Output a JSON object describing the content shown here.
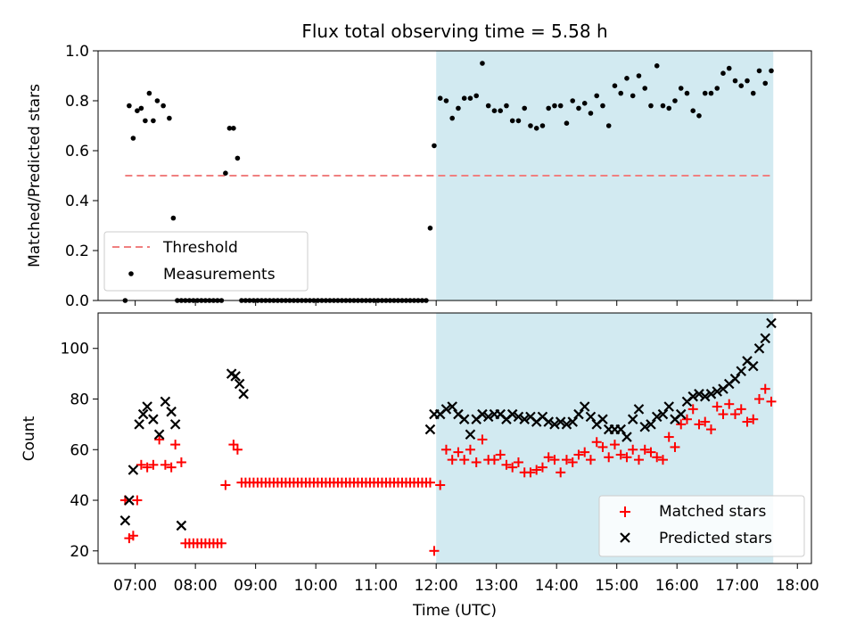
{
  "title": "Flux total observing time = 5.58 h",
  "chart_data": [
    {
      "type": "scatter",
      "ylabel": "Matched/Predicted stars",
      "ylim": [
        0.0,
        1.0
      ],
      "yticks": [
        "0.0",
        "0.2",
        "0.4",
        "0.6",
        "0.8",
        "1.0"
      ],
      "grid": false,
      "legend_position": "lower-left",
      "threshold": {
        "name": "Threshold",
        "value": 0.5,
        "color": "#f08080",
        "x_start": "06:50",
        "x_end": "17:36"
      },
      "shaded_region": {
        "x_start": "12:00",
        "x_end": "17:36",
        "color": "#add8e6"
      },
      "series": [
        {
          "name": "Measurements",
          "color": "#000000",
          "x": [
            "06:50",
            "06:54",
            "06:58",
            "07:02",
            "07:06",
            "07:10",
            "07:14",
            "07:18",
            "07:22",
            "07:28",
            "07:34",
            "07:38",
            "07:42",
            "07:46",
            "07:50",
            "07:54",
            "07:58",
            "08:02",
            "08:06",
            "08:10",
            "08:14",
            "08:18",
            "08:22",
            "08:26",
            "08:30",
            "08:34",
            "08:38",
            "08:42",
            "08:46",
            "08:50",
            "08:54",
            "08:58",
            "09:02",
            "09:06",
            "09:10",
            "09:14",
            "09:18",
            "09:22",
            "09:26",
            "09:30",
            "09:34",
            "09:38",
            "09:42",
            "09:46",
            "09:50",
            "09:54",
            "09:58",
            "10:02",
            "10:06",
            "10:10",
            "10:14",
            "10:18",
            "10:22",
            "10:26",
            "10:30",
            "10:34",
            "10:38",
            "10:42",
            "10:46",
            "10:50",
            "10:54",
            "10:58",
            "11:02",
            "11:06",
            "11:10",
            "11:14",
            "11:18",
            "11:22",
            "11:26",
            "11:30",
            "11:34",
            "11:38",
            "11:42",
            "11:46",
            "11:50",
            "11:54",
            "11:58",
            "12:04",
            "12:10",
            "12:16",
            "12:22",
            "12:28",
            "12:34",
            "12:40",
            "12:46",
            "12:52",
            "12:58",
            "13:04",
            "13:10",
            "13:16",
            "13:22",
            "13:28",
            "13:34",
            "13:40",
            "13:46",
            "13:52",
            "13:58",
            "14:04",
            "14:10",
            "14:16",
            "14:22",
            "14:28",
            "14:34",
            "14:40",
            "14:46",
            "14:52",
            "14:58",
            "15:04",
            "15:10",
            "15:16",
            "15:22",
            "15:28",
            "15:34",
            "15:40",
            "15:46",
            "15:52",
            "15:58",
            "16:04",
            "16:10",
            "16:16",
            "16:22",
            "16:28",
            "16:34",
            "16:40",
            "16:46",
            "16:52",
            "16:58",
            "17:04",
            "17:10",
            "17:16",
            "17:22",
            "17:28",
            "17:34"
          ],
          "y": [
            0.0,
            0.78,
            0.65,
            0.76,
            0.77,
            0.72,
            0.83,
            0.72,
            0.8,
            0.78,
            0.73,
            0.33,
            0.0,
            0.0,
            0.0,
            0.0,
            0.0,
            0.0,
            0.0,
            0.0,
            0.0,
            0.0,
            0.0,
            0.0,
            0.51,
            0.69,
            0.69,
            0.57,
            0.0,
            0.0,
            0.0,
            0.0,
            0.0,
            0.0,
            0.0,
            0.0,
            0.0,
            0.0,
            0.0,
            0.0,
            0.0,
            0.0,
            0.0,
            0.0,
            0.0,
            0.0,
            0.0,
            0.0,
            0.0,
            0.0,
            0.0,
            0.0,
            0.0,
            0.0,
            0.0,
            0.0,
            0.0,
            0.0,
            0.0,
            0.0,
            0.0,
            0.0,
            0.0,
            0.0,
            0.0,
            0.0,
            0.0,
            0.0,
            0.0,
            0.0,
            0.0,
            0.0,
            0.0,
            0.0,
            0.0,
            0.29,
            0.62,
            0.81,
            0.8,
            0.73,
            0.77,
            0.81,
            0.81,
            0.82,
            0.95,
            0.78,
            0.76,
            0.76,
            0.78,
            0.72,
            0.72,
            0.77,
            0.7,
            0.69,
            0.7,
            0.77,
            0.78,
            0.78,
            0.71,
            0.8,
            0.77,
            0.79,
            0.75,
            0.82,
            0.78,
            0.7,
            0.86,
            0.83,
            0.89,
            0.82,
            0.9,
            0.85,
            0.78,
            0.94,
            0.78,
            0.77,
            0.8,
            0.85,
            0.83,
            0.76,
            0.74,
            0.83,
            0.83,
            0.85,
            0.91,
            0.93,
            0.88,
            0.86,
            0.88,
            0.83,
            0.92,
            0.87,
            0.92
          ]
        }
      ]
    },
    {
      "type": "scatter",
      "xlabel": "Time (UTC)",
      "ylabel": "Count",
      "ylim": [
        15,
        114
      ],
      "yticks": [
        "20",
        "40",
        "60",
        "80",
        "100"
      ],
      "xticks": [
        "07:00",
        "08:00",
        "09:00",
        "10:00",
        "11:00",
        "12:00",
        "13:00",
        "14:00",
        "15:00",
        "16:00",
        "17:00",
        "18:00"
      ],
      "grid": false,
      "legend_position": "lower-right",
      "shaded_region": {
        "x_start": "12:00",
        "x_end": "17:36",
        "color": "#add8e6"
      },
      "series": [
        {
          "name": "Matched stars",
          "color": "#ff0000",
          "marker": "+",
          "x": [
            "06:50",
            "06:54",
            "06:58",
            "07:02",
            "07:06",
            "07:12",
            "07:18",
            "07:24",
            "07:30",
            "07:36",
            "07:40",
            "07:46",
            "07:50",
            "07:54",
            "07:58",
            "08:02",
            "08:06",
            "08:10",
            "08:14",
            "08:18",
            "08:22",
            "08:26",
            "08:30",
            "08:38",
            "08:42",
            "08:46",
            "08:50",
            "08:54",
            "08:58",
            "09:02",
            "09:06",
            "09:10",
            "09:14",
            "09:18",
            "09:22",
            "09:26",
            "09:30",
            "09:34",
            "09:38",
            "09:42",
            "09:46",
            "09:50",
            "09:54",
            "09:58",
            "10:02",
            "10:06",
            "10:10",
            "10:14",
            "10:18",
            "10:22",
            "10:26",
            "10:30",
            "10:34",
            "10:38",
            "10:42",
            "10:46",
            "10:50",
            "10:54",
            "10:58",
            "11:02",
            "11:06",
            "11:10",
            "11:14",
            "11:18",
            "11:22",
            "11:26",
            "11:30",
            "11:34",
            "11:38",
            "11:42",
            "11:46",
            "11:50",
            "11:54",
            "11:58",
            "12:04",
            "12:10",
            "12:16",
            "12:22",
            "12:28",
            "12:34",
            "12:40",
            "12:46",
            "12:52",
            "12:58",
            "13:04",
            "13:10",
            "13:16",
            "13:22",
            "13:28",
            "13:34",
            "13:40",
            "13:46",
            "13:52",
            "13:58",
            "14:04",
            "14:10",
            "14:16",
            "14:22",
            "14:28",
            "14:34",
            "14:40",
            "14:46",
            "14:52",
            "14:58",
            "15:04",
            "15:10",
            "15:16",
            "15:22",
            "15:28",
            "15:34",
            "15:40",
            "15:46",
            "15:52",
            "15:58",
            "16:04",
            "16:10",
            "16:16",
            "16:22",
            "16:28",
            "16:34",
            "16:40",
            "16:46",
            "16:52",
            "16:58",
            "17:04",
            "17:10",
            "17:16",
            "17:22",
            "17:28",
            "17:34"
          ],
          "y": [
            40,
            25,
            26,
            40,
            54,
            53,
            54,
            64,
            54,
            53,
            62,
            55,
            23,
            23,
            23,
            23,
            23,
            23,
            23,
            23,
            23,
            23,
            46,
            62,
            60,
            47,
            47,
            47,
            47,
            47,
            47,
            47,
            47,
            47,
            47,
            47,
            47,
            47,
            47,
            47,
            47,
            47,
            47,
            47,
            47,
            47,
            47,
            47,
            47,
            47,
            47,
            47,
            47,
            47,
            47,
            47,
            47,
            47,
            47,
            47,
            47,
            47,
            47,
            47,
            47,
            47,
            47,
            47,
            47,
            47,
            47,
            47,
            47,
            20,
            46,
            60,
            56,
            59,
            56,
            60,
            55,
            64,
            56,
            56,
            58,
            54,
            53,
            55,
            51,
            51,
            52,
            53,
            57,
            56,
            51,
            56,
            55,
            58,
            59,
            56,
            63,
            61,
            57,
            62,
            58,
            57,
            60,
            56,
            60,
            59,
            57,
            56,
            65,
            61,
            70,
            72,
            76,
            70,
            71,
            68,
            77,
            74,
            78,
            74,
            76,
            71,
            72,
            80,
            84,
            79
          ]
        },
        {
          "name": "Predicted stars",
          "color": "#000000",
          "marker": "x",
          "x": [
            "06:50",
            "06:54",
            "06:58",
            "07:04",
            "07:08",
            "07:12",
            "07:18",
            "07:24",
            "07:30",
            "07:36",
            "07:40",
            "07:46",
            "08:36",
            "08:40",
            "08:44",
            "08:48",
            "11:54",
            "11:58",
            "12:04",
            "12:10",
            "12:16",
            "12:22",
            "12:28",
            "12:34",
            "12:40",
            "12:46",
            "12:52",
            "12:58",
            "13:04",
            "13:10",
            "13:16",
            "13:22",
            "13:28",
            "13:34",
            "13:40",
            "13:46",
            "13:52",
            "13:58",
            "14:04",
            "14:10",
            "14:16",
            "14:22",
            "14:28",
            "14:34",
            "14:40",
            "14:46",
            "14:52",
            "14:58",
            "15:04",
            "15:10",
            "15:16",
            "15:22",
            "15:28",
            "15:34",
            "15:40",
            "15:46",
            "15:52",
            "15:58",
            "16:04",
            "16:10",
            "16:16",
            "16:22",
            "16:28",
            "16:34",
            "16:40",
            "16:46",
            "16:52",
            "16:58",
            "17:04",
            "17:10",
            "17:16",
            "17:22",
            "17:28",
            "17:34"
          ],
          "y": [
            32,
            40,
            52,
            70,
            74,
            77,
            72,
            66,
            79,
            75,
            70,
            30,
            90,
            89,
            86,
            82,
            68,
            74,
            74,
            76,
            77,
            74,
            72,
            66,
            72,
            74,
            73,
            74,
            74,
            72,
            74,
            73,
            72,
            73,
            71,
            73,
            71,
            70,
            71,
            70,
            71,
            74,
            77,
            73,
            70,
            72,
            68,
            68,
            68,
            65,
            72,
            76,
            69,
            70,
            73,
            74,
            77,
            72,
            74,
            79,
            81,
            82,
            81,
            82,
            83,
            84,
            86,
            88,
            91,
            95,
            93,
            100,
            104,
            110
          ]
        }
      ]
    }
  ]
}
